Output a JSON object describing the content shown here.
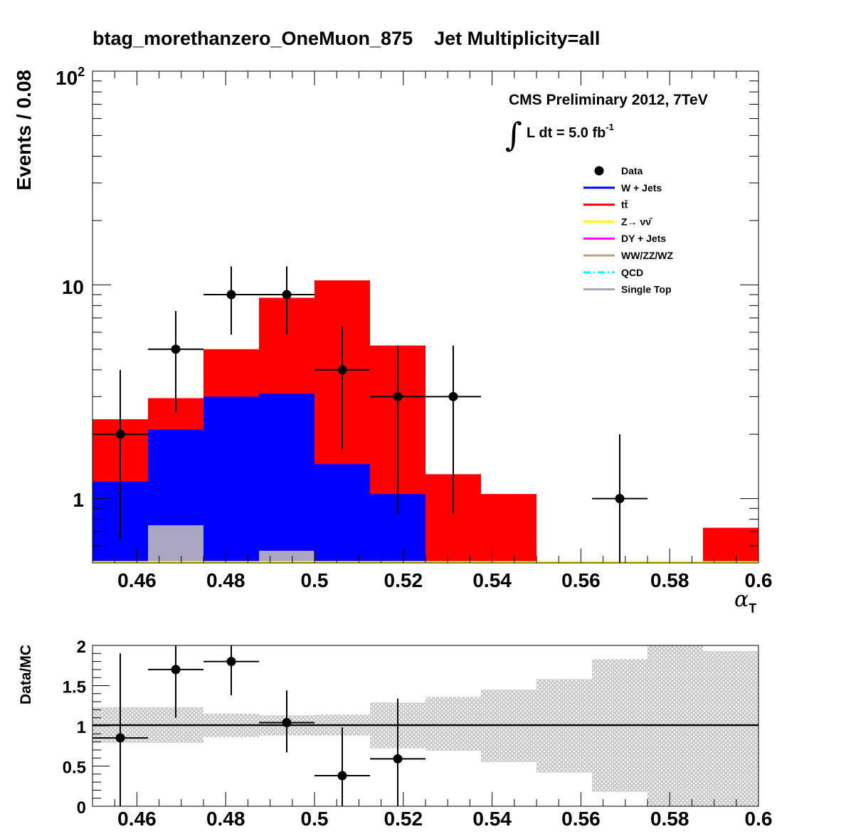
{
  "title": "btag_morethanzero_OneMuon_875    Jet Multiplicity=all",
  "label_cms": "CMS Preliminary 2012, 7TeV",
  "label_lumi_main": "L dt = 5.0 fb",
  "label_lumi_exp": "-1",
  "label_integral": "∫",
  "colors": {
    "w_jets": "#0000ff",
    "ttbar": "#ff0000",
    "z_nunu": "#ffff00",
    "dy_jets": "#ff00ff",
    "diboson": "#c8997a",
    "qcd": "#00ffff",
    "single_top": "#aaa6c2",
    "band": "#c8c8c8"
  },
  "chart_data": [
    {
      "type": "bar",
      "ylabel": "Events / 0.08",
      "xlabel": "α",
      "xlabel_sub": "T",
      "xlim": [
        0.45,
        0.6
      ],
      "ylim": [
        0.5,
        100
      ],
      "yscale": "log",
      "x_ticks": [
        "0.46",
        "0.48",
        "0.5",
        "0.52",
        "0.54",
        "0.56",
        "0.58",
        "0.6"
      ],
      "y_tick_labels": {
        "main": "10",
        "exp": "2",
        "mid": "10",
        "low": "1"
      },
      "bin_edges": [
        0.45,
        0.4625,
        0.475,
        0.4875,
        0.5,
        0.5125,
        0.525,
        0.5375,
        0.55,
        0.5625,
        0.575,
        0.5875,
        0.6
      ],
      "legend": [
        {
          "name": "Data",
          "marker": "point"
        },
        {
          "name": "W + Jets",
          "color_key": "w_jets"
        },
        {
          "name": "tt̄",
          "color_key": "ttbar"
        },
        {
          "name": "Z→ νν̄",
          "color_key": "z_nunu"
        },
        {
          "name": "DY + Jets",
          "color_key": "dy_jets"
        },
        {
          "name": "WW/ZZ/WZ",
          "color_key": "diboson"
        },
        {
          "name": "QCD",
          "color_key": "qcd",
          "dashed": true
        },
        {
          "name": "Single Top",
          "color_key": "single_top"
        }
      ],
      "stack": {
        "w_jets": [
          1.2,
          2.1,
          3.0,
          3.1,
          1.45,
          1.05,
          0,
          0,
          0,
          0,
          0,
          0
        ],
        "total": [
          2.35,
          2.95,
          5.0,
          8.7,
          10.5,
          5.2,
          1.3,
          1.05,
          0,
          0,
          0,
          0.73
        ],
        "single_top": [
          0,
          0.75,
          0,
          0.57,
          0,
          0,
          0,
          0,
          0,
          0,
          0,
          0
        ]
      },
      "data_points": [
        {
          "x": 0.45625,
          "y": 2,
          "yerr_low": 1.35,
          "yerr_high": 2.0
        },
        {
          "x": 0.46875,
          "y": 5,
          "yerr_low": 2.45,
          "yerr_high": 2.55
        },
        {
          "x": 0.48125,
          "y": 9,
          "yerr_low": 3.15,
          "yerr_high": 3.2
        },
        {
          "x": 0.49375,
          "y": 9,
          "yerr_low": 3.15,
          "yerr_high": 3.2
        },
        {
          "x": 0.50625,
          "y": 4,
          "yerr_low": 2.3,
          "yerr_high": 2.4
        },
        {
          "x": 0.51875,
          "y": 3,
          "yerr_low": 2.15,
          "yerr_high": 2.2
        },
        {
          "x": 0.53125,
          "y": 3,
          "yerr_low": 2.15,
          "yerr_high": 2.2
        },
        {
          "x": 0.56875,
          "y": 1,
          "yerr_low": 0.83,
          "yerr_high": 1.0
        }
      ]
    },
    {
      "type": "scatter",
      "ylabel": "Data/MC",
      "xlim": [
        0.45,
        0.6
      ],
      "ylim": [
        0,
        2
      ],
      "x_ticks": [
        "0.46",
        "0.48",
        "0.5",
        "0.52",
        "0.54",
        "0.56",
        "0.58",
        "0.6"
      ],
      "y_ticks": [
        "0",
        "0.5",
        "1",
        "1.5",
        "2"
      ],
      "reference_line": 1,
      "uncertainty_band": [
        {
          "lo": 0.79,
          "hi": 1.23
        },
        {
          "lo": 0.79,
          "hi": 1.23
        },
        {
          "lo": 0.86,
          "hi": 1.15
        },
        {
          "lo": 0.88,
          "hi": 1.13
        },
        {
          "lo": 0.88,
          "hi": 1.14
        },
        {
          "lo": 0.72,
          "hi": 1.29
        },
        {
          "lo": 0.69,
          "hi": 1.36
        },
        {
          "lo": 0.55,
          "hi": 1.45
        },
        {
          "lo": 0.42,
          "hi": 1.58
        },
        {
          "lo": 0.18,
          "hi": 1.83
        },
        {
          "lo": 0.0,
          "hi": 2.0
        },
        {
          "lo": 0.0,
          "hi": 1.93
        }
      ],
      "points": [
        {
          "x": 0.45625,
          "y": 0.85,
          "yerr_low": 0.85,
          "yerr_high": 1.05
        },
        {
          "x": 0.46875,
          "y": 1.7,
          "yerr_low": 0.6,
          "yerr_high": 0.6
        },
        {
          "x": 0.48125,
          "y": 1.8,
          "yerr_low": 0.42,
          "yerr_high": 0.45
        },
        {
          "x": 0.49375,
          "y": 1.04,
          "yerr_low": 0.37,
          "yerr_high": 0.4
        },
        {
          "x": 0.50625,
          "y": 0.38,
          "yerr_low": 0.38,
          "yerr_high": 0.6
        },
        {
          "x": 0.51875,
          "y": 0.59,
          "yerr_low": 0.59,
          "yerr_high": 0.75
        }
      ]
    }
  ]
}
